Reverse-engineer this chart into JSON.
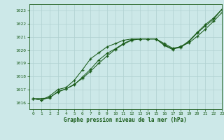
{
  "title": "Graphe pression niveau de la mer (hPa)",
  "background_color": "#cce8e8",
  "grid_color": "#b0d0d0",
  "line_color": "#1a5c1a",
  "xlim": [
    -0.5,
    23
  ],
  "ylim": [
    1015.5,
    1023.5
  ],
  "yticks": [
    1016,
    1017,
    1018,
    1019,
    1020,
    1021,
    1022,
    1023
  ],
  "xticks": [
    0,
    1,
    2,
    3,
    4,
    5,
    6,
    7,
    8,
    9,
    10,
    11,
    12,
    13,
    14,
    15,
    16,
    17,
    18,
    19,
    20,
    21,
    22,
    23
  ],
  "series1_x": [
    0,
    1,
    2,
    3,
    4,
    5,
    6,
    7,
    8,
    9,
    10,
    11,
    12,
    13,
    14,
    15,
    16,
    17,
    18,
    19,
    20,
    21,
    22,
    23
  ],
  "series1_y": [
    1016.3,
    1016.2,
    1016.5,
    1017.0,
    1017.15,
    1017.7,
    1018.5,
    1019.35,
    1019.8,
    1020.25,
    1020.5,
    1020.75,
    1020.85,
    1020.85,
    1020.85,
    1020.85,
    1020.35,
    1020.05,
    1020.3,
    1020.55,
    1021.05,
    1021.6,
    1022.2,
    1022.85
  ],
  "series2_x": [
    0,
    1,
    2,
    3,
    4,
    5,
    6,
    7,
    8,
    9,
    10,
    11,
    12,
    13,
    14,
    15,
    16,
    17,
    18,
    19,
    20,
    21,
    22,
    23
  ],
  "series2_y": [
    1016.3,
    1016.2,
    1016.4,
    1016.8,
    1017.05,
    1017.4,
    1017.85,
    1018.4,
    1019.0,
    1019.55,
    1020.05,
    1020.45,
    1020.75,
    1020.85,
    1020.85,
    1020.85,
    1020.5,
    1020.15,
    1020.25,
    1020.7,
    1021.35,
    1021.95,
    1022.45,
    1023.1
  ],
  "series3_x": [
    0,
    2,
    3,
    4,
    5,
    6,
    7,
    8,
    9,
    10,
    11,
    12,
    13,
    14,
    15,
    16,
    17,
    18,
    19,
    20,
    21,
    22,
    23
  ],
  "series3_y": [
    1016.3,
    1016.35,
    1016.85,
    1017.05,
    1017.35,
    1017.95,
    1018.55,
    1019.25,
    1019.75,
    1020.1,
    1020.5,
    1020.8,
    1020.85,
    1020.85,
    1020.85,
    1020.4,
    1020.1,
    1020.2,
    1020.65,
    1021.3,
    1021.85,
    1022.35,
    1023.1
  ]
}
